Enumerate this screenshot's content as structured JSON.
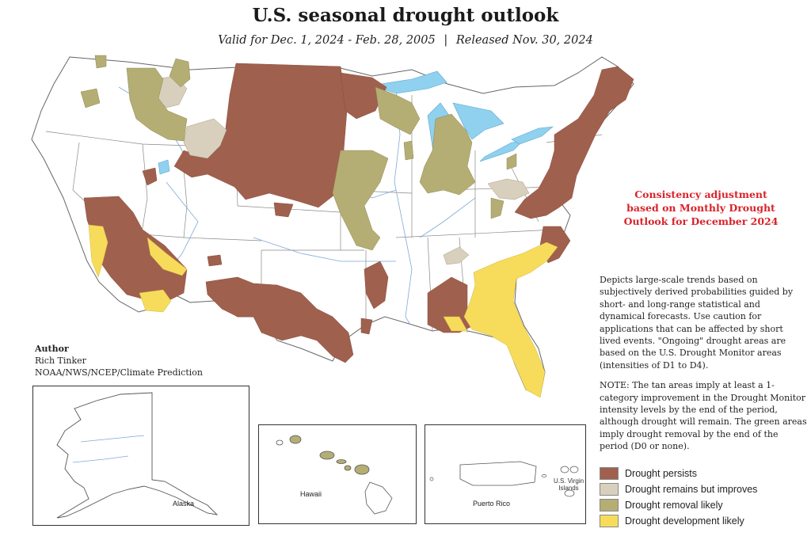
{
  "title": "U.S. seasonal drought outlook",
  "subtitle": {
    "valid": "Valid for Dec. 1, 2024 - Feb. 28, 2005",
    "separator": "|",
    "released": "Released Nov. 30, 2024"
  },
  "consistency_note": {
    "line1": "Consistency adjustment",
    "line2": "based on Monthly Drought",
    "line3": "Outlook for December 2024"
  },
  "description": {
    "paragraph1": "Depicts large-scale trends based on subjectively derived probabilities guided by short- and long-range statistical and dynamical forecasts. Use caution for applications that can be affected by short lived events. \"Ongoing\" drought areas are based on the U.S. Drought Monitor areas (intensities of D1 to D4).",
    "paragraph2": "NOTE: The tan areas imply at least a 1-category improvement in the Drought Monitor intensity levels by the end of the period, although drought will remain. The green areas imply drought removal by the end of the period (D0 or none)."
  },
  "author": {
    "label": "Author",
    "name": "Rich Tinker",
    "org": "NOAA/NWS/NCEP/Climate Prediction"
  },
  "insets": {
    "alaska": "Alaska",
    "hawaii": "Hawaii",
    "puerto_rico": "Puerto Rico",
    "virgin_islands_line1": "U.S. Virgin",
    "virgin_islands_line2": "Islands"
  },
  "legend": [
    {
      "label": "Drought persists",
      "color": "#a0604e"
    },
    {
      "label": "Drought remains but improves",
      "color": "#d8d0bd"
    },
    {
      "label": "Drought removal likely",
      "color": "#b5ae74"
    },
    {
      "label": "Drought development likely",
      "color": "#f7dc5c"
    }
  ],
  "colors": {
    "persists": "#a0604e",
    "improves": "#d8d0bd",
    "removal": "#b5ae74",
    "development": "#f7dc5c",
    "water": "#8fd1ef",
    "border": "#777777",
    "rivers": "#7fa9d6",
    "alert_text": "#d8232a"
  }
}
